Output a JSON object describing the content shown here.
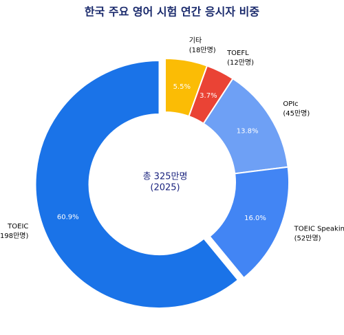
{
  "chart_data": {
    "type": "donut",
    "title": "한국 주요 영어 시험 연간 응시자 비중",
    "center_text": [
      "총 325만명",
      "(2025)"
    ],
    "categories": [
      "기타",
      "TOEFL",
      "OPIc",
      "TOEIC Speaking",
      "TOEIC"
    ],
    "sub_labels": [
      "(18만명)",
      "(12만명)",
      "(45만명)",
      "(52만명)",
      "(198만명)"
    ],
    "values": [
      5.5,
      3.7,
      13.8,
      16.0,
      60.9
    ],
    "value_labels": [
      "5.5%",
      "3.7%",
      "13.8%",
      "16.0%",
      "60.9%"
    ],
    "colors": [
      "#fbbc05",
      "#ea4335",
      "#6ea0f5",
      "#4285f4",
      "#1a73e8"
    ],
    "explode": [
      0,
      0,
      0,
      0,
      0.05
    ]
  }
}
